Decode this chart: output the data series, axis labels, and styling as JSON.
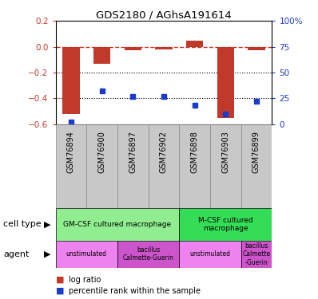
{
  "title": "GDS2180 / AGhsA191614",
  "samples": [
    "GSM76894",
    "GSM76900",
    "GSM76897",
    "GSM76902",
    "GSM76898",
    "GSM76903",
    "GSM76899"
  ],
  "log_ratio": [
    -0.52,
    -0.13,
    -0.03,
    -0.02,
    0.05,
    -0.55,
    -0.03
  ],
  "percentile_rank": [
    2,
    32,
    27,
    27,
    18,
    10,
    22
  ],
  "ylim_left": [
    -0.6,
    0.2
  ],
  "ylim_right": [
    0,
    100
  ],
  "right_ticks": [
    0,
    25,
    50,
    75,
    100
  ],
  "right_tick_labels": [
    "0",
    "25",
    "50",
    "75",
    "100%"
  ],
  "left_ticks": [
    -0.6,
    -0.4,
    -0.2,
    0.0,
    0.2
  ],
  "bar_color": "#C0392B",
  "dot_color": "#1a3ccc",
  "dashed_line_color": "#C0392B",
  "dotted_line_color": "#000000",
  "cell_type_row": [
    {
      "label": "GM-CSF cultured macrophage",
      "start": 0,
      "end": 4,
      "color": "#90EE90"
    },
    {
      "label": "M-CSF cultured\nmacrophage",
      "start": 4,
      "end": 7,
      "color": "#33DD55"
    }
  ],
  "agent_row": [
    {
      "label": "unstimulated",
      "start": 0,
      "end": 2,
      "color": "#EE82EE"
    },
    {
      "label": "bacillus\nCalmette-Guerin",
      "start": 2,
      "end": 4,
      "color": "#CC55CC"
    },
    {
      "label": "unstimulated",
      "start": 4,
      "end": 6,
      "color": "#EE82EE"
    },
    {
      "label": "bacillus\nCalmette\n-Guerin",
      "start": 6,
      "end": 7,
      "color": "#CC55CC"
    }
  ],
  "cell_type_label": "cell type",
  "agent_label": "agent",
  "legend_items": [
    {
      "label": "log ratio",
      "color": "#C0392B"
    },
    {
      "label": "percentile rank within the sample",
      "color": "#1a3ccc"
    }
  ],
  "gsm_row_color": "#C8C8C8",
  "gsm_border_color": "#888888"
}
